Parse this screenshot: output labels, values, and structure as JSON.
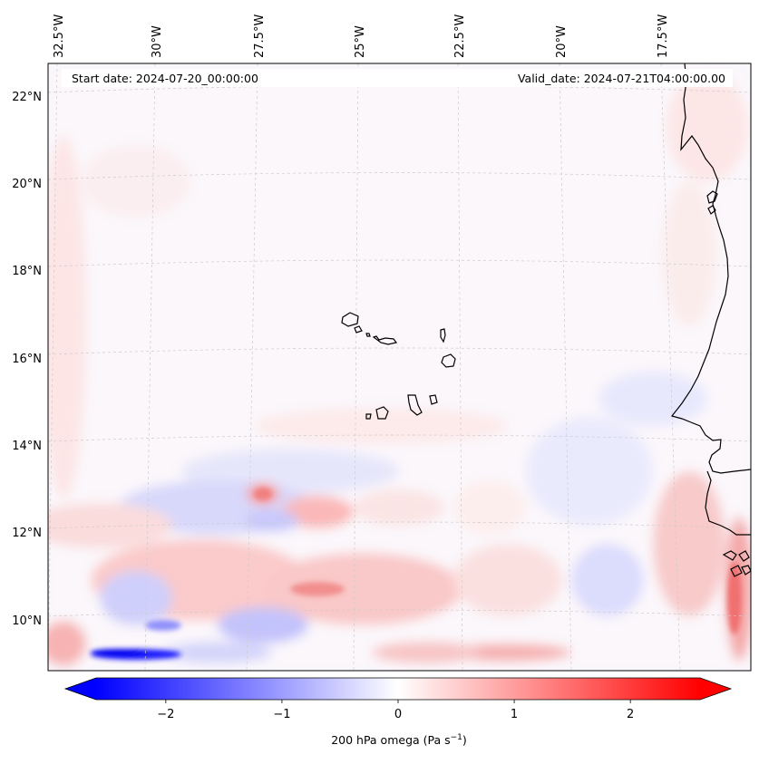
{
  "map": {
    "start_label": "Start date: 2024-07-20_00:00:00",
    "valid_label": "Valid_date: 2024-07-21T04:00:00.00",
    "lon_labels": [
      "32.5°W",
      "30°W",
      "27.5°W",
      "25°W",
      "22.5°W",
      "20°W",
      "17.5°W"
    ],
    "lat_labels": [
      "22°N",
      "20°N",
      "18°N",
      "16°N",
      "14°N",
      "12°N",
      "10°N"
    ],
    "coastline_color": "#000000",
    "gridline_color": "#cccccc"
  },
  "colorbar": {
    "ticks": [
      "−2",
      "−1",
      "0",
      "1",
      "2"
    ],
    "tick_values": [
      -2,
      -1,
      0,
      1,
      2
    ],
    "range": [
      -2.6,
      2.6
    ],
    "label_main": "200 hPa omega (Pa s",
    "label_exp": "−1",
    "label_close": ")",
    "colors": {
      "negative_max": "#0000ff",
      "zero": "#ffffff",
      "positive_max": "#ff0000"
    }
  }
}
